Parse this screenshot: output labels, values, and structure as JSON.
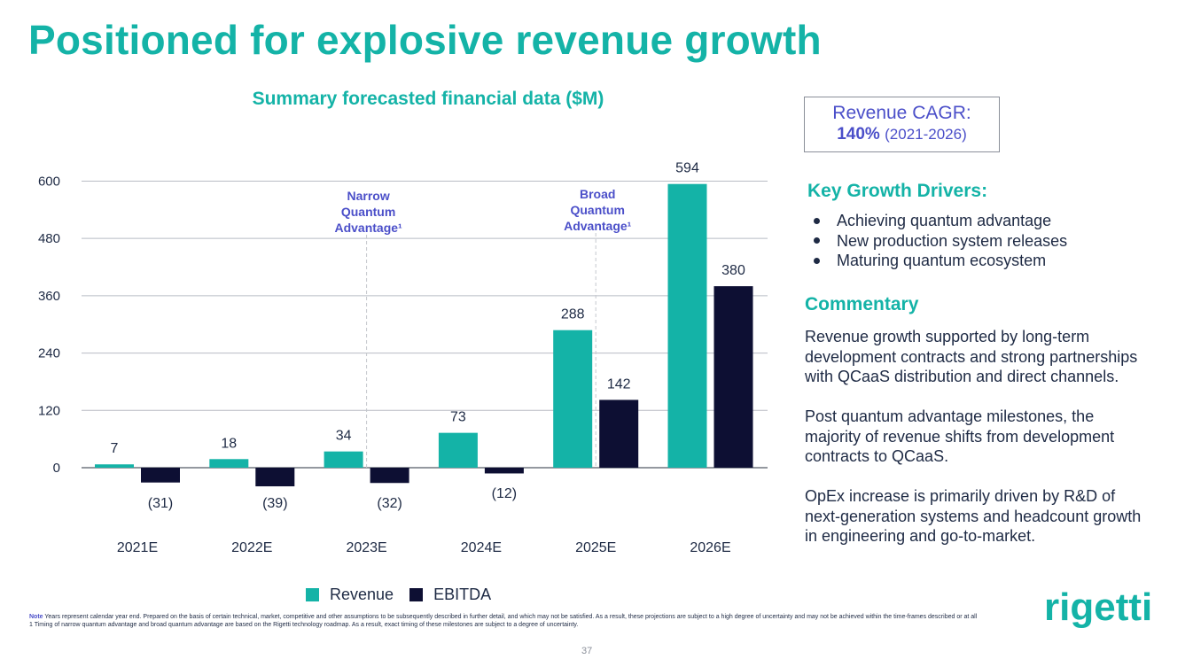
{
  "slide": {
    "title": "Positioned for explosive revenue growth",
    "page_number": "37"
  },
  "chart_data": {
    "type": "bar",
    "title": "Summary forecasted financial data ($M)",
    "categories": [
      "2021E",
      "2022E",
      "2023E",
      "2024E",
      "2025E",
      "2026E"
    ],
    "series": [
      {
        "name": "Revenue",
        "color": "#14b3a7",
        "values": [
          7,
          18,
          34,
          73,
          288,
          594
        ],
        "labels": [
          "7",
          "18",
          "34",
          "73",
          "288",
          "594"
        ]
      },
      {
        "name": "EBITDA",
        "color": "#0d0f33",
        "values": [
          -31,
          -39,
          -32,
          -12,
          142,
          380
        ],
        "labels": [
          "(31)",
          "(39)",
          "(32)",
          "(12)",
          "142",
          "380"
        ]
      }
    ],
    "yticks": [
      0,
      120,
      240,
      360,
      480,
      600
    ],
    "ylim": [
      -60,
      600
    ],
    "grid": true,
    "annotations": [
      {
        "text_lines": [
          "Narrow",
          "Quantum",
          "Advantage¹"
        ],
        "between": [
          "2023E",
          "2023E"
        ]
      },
      {
        "text_lines": [
          "Broad",
          "Quantum",
          "Advantage¹"
        ],
        "between": [
          "2025E",
          "2025E"
        ]
      }
    ],
    "legend_position": "bottom"
  },
  "cagr": {
    "label": "Revenue CAGR:",
    "value": "140%",
    "range": "(2021-2026)"
  },
  "drivers": {
    "heading": "Key Growth Drivers:",
    "items": [
      "Achieving quantum advantage",
      "New production system releases",
      "Maturing quantum ecosystem"
    ]
  },
  "commentary": {
    "heading": "Commentary",
    "paragraphs": [
      "Revenue growth supported by long-term development contracts and strong partnerships with QCaaS distribution and direct channels.",
      "Post quantum advantage milestones, the majority of revenue shifts from development contracts to QCaaS.",
      "OpEx increase is primarily driven by R&D of next-generation systems and headcount growth in engineering and go-to-market."
    ]
  },
  "footnotes": {
    "note_label": "Note",
    "note_text": " Years represent calendar year end. Prepared on the basis of certain technical, market, competitive and other assumptions to be subsequently described in further detail, and which may not be satisfied. As a result, these projections are subject to a high degree of uncertainty and may not be achieved within the time-frames described or at all",
    "footnote_1": "1 Timing of narrow quantum advantage and broad quantum advantage are based on the Rigetti technology roadmap. As a result, exact timing of these milestones are subject to a degree of uncertainty."
  },
  "logo": {
    "text": "rigetti",
    "color": "#14b3a7"
  }
}
